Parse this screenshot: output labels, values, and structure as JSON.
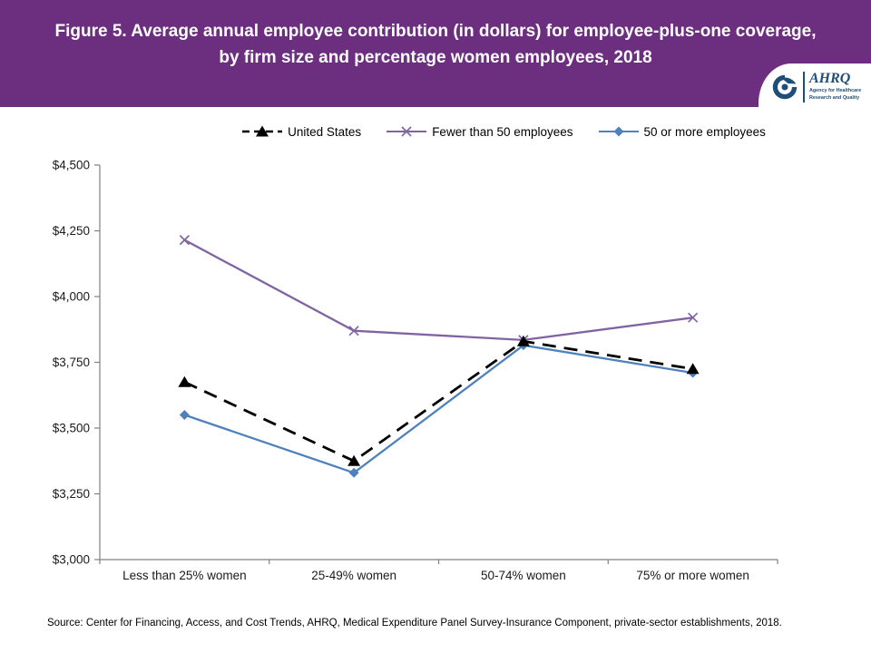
{
  "header": {
    "title": "Figure 5. Average annual employee contribution (in dollars) for employee-plus-one coverage, by firm size and percentage women employees, 2018",
    "logo": {
      "acronym": "AHRQ",
      "tagline": "Agency for Healthcare Research and Quality"
    }
  },
  "colors": {
    "banner": "#6C2E7E",
    "axis": "#808080",
    "text": "#1a1a1a",
    "logo_navy": "#1F4E79"
  },
  "chart_data": {
    "type": "line",
    "title": "Average annual employee contribution (in dollars) for employee-plus-one coverage, by firm size and percentage women employees, 2018",
    "categories": [
      "Less than 25% women",
      "25-49% women",
      "50-74% women",
      "75% or more women"
    ],
    "series": [
      {
        "name": "United States",
        "color": "#000000",
        "dash": "dashed",
        "marker": "triangle",
        "values": [
          3675,
          3375,
          3830,
          3725
        ]
      },
      {
        "name": "Fewer than 50 employees",
        "color": "#8064A2",
        "dash": "solid",
        "marker": "x",
        "values": [
          4215,
          3870,
          3835,
          3920
        ]
      },
      {
        "name": "50 or more employees",
        "color": "#4F81BD",
        "dash": "solid",
        "marker": "diamond",
        "values": [
          3550,
          3330,
          3815,
          3710
        ]
      }
    ],
    "ylim": [
      3000,
      4500
    ],
    "y_tick_step": 250,
    "y_tick_labels": [
      "$3,000",
      "$3,250",
      "$3,500",
      "$3,750",
      "$4,000",
      "$4,250",
      "$4,500"
    ],
    "grid": false,
    "legend_position": "top",
    "xlabel": "",
    "ylabel": ""
  },
  "footer": {
    "source": "Source: Center for Financing, Access, and Cost Trends, AHRQ, Medical Expenditure Panel Survey-Insurance Component, private-sector establishments, 2018."
  }
}
